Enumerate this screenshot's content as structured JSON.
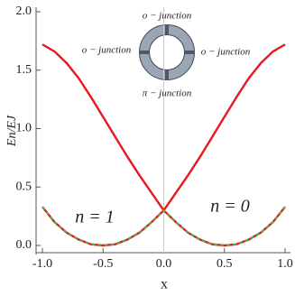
{
  "chart_data": {
    "type": "line",
    "ylabel": "En/EJ",
    "xlabel": "x",
    "annotations": [
      "n = 1",
      "n = 0",
      "o − junction",
      "o − junction",
      "o − junction",
      "π − junction"
    ],
    "x": [
      -1.0,
      -0.9,
      -0.8,
      -0.7,
      -0.6,
      -0.5,
      -0.4,
      -0.3,
      -0.2,
      -0.1,
      0.0,
      0.1,
      0.2,
      0.3,
      0.4,
      0.5,
      0.6,
      0.7,
      0.8,
      0.9,
      1.0
    ],
    "series": [
      {
        "color": "#e8191e",
        "dash": false,
        "values": [
          1.72,
          1.66,
          1.56,
          1.43,
          1.27,
          1.1,
          0.93,
          0.76,
          0.6,
          0.45,
          0.3,
          0.45,
          0.6,
          0.76,
          0.93,
          1.1,
          1.27,
          1.43,
          1.56,
          1.66,
          1.72
        ]
      },
      {
        "color": "#e8191e",
        "dash": false,
        "values": [
          0.33,
          0.2,
          0.11,
          0.05,
          0.01,
          0,
          0.01,
          0.05,
          0.11,
          0.2,
          0.3,
          0.2,
          0.11,
          0.05,
          0.01,
          0,
          0.01,
          0.05,
          0.11,
          0.2,
          0.33
        ]
      },
      {
        "color": "#4caf50",
        "dash": true,
        "values": [
          0.33,
          0.2,
          0.11,
          0.05,
          0.01,
          0,
          0.01,
          0.05,
          0.11,
          0.2,
          0.3,
          0.2,
          0.11,
          0.05,
          0.01,
          0,
          0.01,
          0.05,
          0.11,
          0.2,
          0.33
        ]
      }
    ],
    "xlim": [
      -1,
      1
    ],
    "ylim": [
      0,
      2
    ],
    "xticks": [
      {
        "value": -1,
        "label": "-1.0"
      },
      -0.5,
      {
        "value": 0,
        "label": "0.0"
      },
      0.5,
      {
        "value": 1,
        "label": "1.0"
      }
    ],
    "yticks": [
      {
        "value": 0,
        "label": "0.0"
      },
      0.5,
      {
        "value": 1,
        "label": "1.0"
      },
      1.5,
      {
        "value": 2,
        "label": "2.0"
      }
    ]
  }
}
